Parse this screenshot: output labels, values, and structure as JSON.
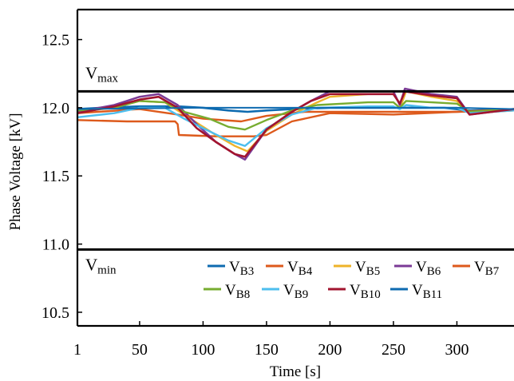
{
  "chart_data": {
    "type": "line",
    "xlabel": "Time [s]",
    "ylabel": "Phase Voltage [kV]",
    "xlim": [
      1,
      345
    ],
    "ylim": [
      10.4,
      12.72
    ],
    "x_ticks": [
      {
        "value": 1,
        "label": "1"
      },
      {
        "value": 50,
        "label": "50"
      },
      {
        "value": 100,
        "label": "100"
      },
      {
        "value": 150,
        "label": "150"
      },
      {
        "value": 200,
        "label": "200"
      },
      {
        "value": 250,
        "label": "250"
      },
      {
        "value": 300,
        "label": "300"
      }
    ],
    "y_ticks": [
      {
        "value": 10.5,
        "label": "10.5"
      },
      {
        "value": 11.0,
        "label": "11.0"
      },
      {
        "value": 11.5,
        "label": "11.5"
      },
      {
        "value": 12.0,
        "label": "12.0"
      },
      {
        "value": 12.5,
        "label": "12.5"
      }
    ],
    "reference_lines": [
      {
        "id": "vmax",
        "value": 12.12,
        "main": "V",
        "sub": "max"
      },
      {
        "id": "vmin",
        "value": 10.96,
        "main": "V",
        "sub": "min"
      }
    ],
    "legend_placement": "bottom",
    "grid": false,
    "series": [
      {
        "id": "b3",
        "main": "V",
        "sub": "B3",
        "color": "#0e6bb0",
        "width": 2.6,
        "points": [
          [
            1,
            11.99
          ],
          [
            20,
            12.0
          ],
          [
            50,
            12.01
          ],
          [
            80,
            12.01
          ],
          [
            100,
            12.0
          ],
          [
            120,
            11.98
          ],
          [
            135,
            11.97
          ],
          [
            150,
            11.98
          ],
          [
            170,
            11.99
          ],
          [
            200,
            12.0
          ],
          [
            240,
            12.0
          ],
          [
            260,
            12.0
          ],
          [
            290,
            12.0
          ],
          [
            310,
            11.98
          ],
          [
            345,
            11.99
          ]
        ]
      },
      {
        "id": "b4",
        "main": "V",
        "sub": "B4",
        "color": "#dd5a1c",
        "width": 2.4,
        "points": [
          [
            1,
            11.91
          ],
          [
            40,
            11.9
          ],
          [
            78,
            11.9
          ],
          [
            80,
            11.88
          ],
          [
            81,
            11.8
          ],
          [
            110,
            11.79
          ],
          [
            140,
            11.79
          ],
          [
            150,
            11.8
          ],
          [
            170,
            11.9
          ],
          [
            200,
            11.96
          ],
          [
            250,
            11.95
          ],
          [
            300,
            11.97
          ],
          [
            345,
            11.98
          ]
        ]
      },
      {
        "id": "b5",
        "main": "V",
        "sub": "B5",
        "color": "#eeb32a",
        "width": 2.4,
        "points": [
          [
            1,
            11.97
          ],
          [
            30,
            12.0
          ],
          [
            50,
            12.05
          ],
          [
            70,
            12.04
          ],
          [
            85,
            11.95
          ],
          [
            110,
            11.8
          ],
          [
            125,
            11.72
          ],
          [
            135,
            11.68
          ],
          [
            150,
            11.83
          ],
          [
            170,
            11.95
          ],
          [
            190,
            12.04
          ],
          [
            200,
            12.08
          ],
          [
            230,
            12.1
          ],
          [
            250,
            12.1
          ],
          [
            256,
            12.02
          ],
          [
            260,
            12.12
          ],
          [
            280,
            12.08
          ],
          [
            300,
            12.05
          ],
          [
            310,
            11.96
          ],
          [
            345,
            11.98
          ]
        ]
      },
      {
        "id": "b6",
        "main": "V",
        "sub": "B6",
        "color": "#7b3a96",
        "width": 2.5,
        "points": [
          [
            1,
            11.97
          ],
          [
            30,
            12.02
          ],
          [
            50,
            12.08
          ],
          [
            65,
            12.1
          ],
          [
            80,
            12.02
          ],
          [
            95,
            11.88
          ],
          [
            110,
            11.75
          ],
          [
            125,
            11.66
          ],
          [
            133,
            11.62
          ],
          [
            150,
            11.84
          ],
          [
            170,
            11.97
          ],
          [
            185,
            12.05
          ],
          [
            200,
            12.12
          ],
          [
            230,
            12.12
          ],
          [
            250,
            12.12
          ],
          [
            255,
            12.02
          ],
          [
            259,
            12.14
          ],
          [
            280,
            12.1
          ],
          [
            300,
            12.08
          ],
          [
            310,
            11.95
          ],
          [
            345,
            11.99
          ]
        ]
      },
      {
        "id": "b7",
        "main": "V",
        "sub": "B7",
        "color": "#dd5a1c",
        "width": 2.4,
        "points": [
          [
            1,
            11.96
          ],
          [
            50,
            11.99
          ],
          [
            80,
            11.95
          ],
          [
            100,
            11.92
          ],
          [
            130,
            11.9
          ],
          [
            150,
            11.94
          ],
          [
            180,
            11.97
          ],
          [
            220,
            11.97
          ],
          [
            260,
            11.97
          ],
          [
            300,
            11.97
          ],
          [
            345,
            11.99
          ]
        ]
      },
      {
        "id": "b8",
        "main": "V",
        "sub": "B8",
        "color": "#77ac30",
        "width": 2.4,
        "points": [
          [
            1,
            11.98
          ],
          [
            30,
            12.0
          ],
          [
            50,
            12.05
          ],
          [
            70,
            12.04
          ],
          [
            85,
            11.97
          ],
          [
            105,
            11.92
          ],
          [
            120,
            11.86
          ],
          [
            133,
            11.84
          ],
          [
            150,
            11.91
          ],
          [
            170,
            11.98
          ],
          [
            190,
            12.02
          ],
          [
            230,
            12.04
          ],
          [
            250,
            12.04
          ],
          [
            255,
            12.0
          ],
          [
            260,
            12.05
          ],
          [
            280,
            12.04
          ],
          [
            300,
            12.03
          ],
          [
            310,
            11.97
          ],
          [
            345,
            11.99
          ]
        ]
      },
      {
        "id": "b9",
        "main": "V",
        "sub": "B9",
        "color": "#4dbeee",
        "width": 2.4,
        "points": [
          [
            1,
            11.93
          ],
          [
            30,
            11.96
          ],
          [
            50,
            12.0
          ],
          [
            70,
            12.0
          ],
          [
            85,
            11.92
          ],
          [
            100,
            11.85
          ],
          [
            120,
            11.76
          ],
          [
            133,
            11.72
          ],
          [
            150,
            11.85
          ],
          [
            170,
            11.95
          ],
          [
            190,
            12.0
          ],
          [
            230,
            12.01
          ],
          [
            250,
            12.01
          ],
          [
            255,
            11.99
          ],
          [
            260,
            12.02
          ],
          [
            280,
            12.0
          ],
          [
            300,
            12.0
          ],
          [
            310,
            11.96
          ],
          [
            345,
            11.98
          ]
        ]
      },
      {
        "id": "b10",
        "main": "V",
        "sub": "B10",
        "color": "#a2142f",
        "width": 2.6,
        "points": [
          [
            1,
            11.96
          ],
          [
            30,
            12.01
          ],
          [
            50,
            12.06
          ],
          [
            65,
            12.08
          ],
          [
            80,
            12.0
          ],
          [
            95,
            11.85
          ],
          [
            110,
            11.75
          ],
          [
            125,
            11.66
          ],
          [
            133,
            11.64
          ],
          [
            150,
            11.84
          ],
          [
            170,
            11.97
          ],
          [
            185,
            12.05
          ],
          [
            200,
            12.1
          ],
          [
            230,
            12.1
          ],
          [
            250,
            12.1
          ],
          [
            255,
            12.03
          ],
          [
            259,
            12.12
          ],
          [
            280,
            12.09
          ],
          [
            300,
            12.07
          ],
          [
            310,
            11.95
          ],
          [
            345,
            11.99
          ]
        ]
      },
      {
        "id": "b11",
        "main": "V",
        "sub": "B11",
        "color": "#0e6bb0",
        "width": 2.0,
        "points": [
          [
            1,
            11.99
          ],
          [
            100,
            12.0
          ],
          [
            200,
            12.0
          ],
          [
            300,
            12.0
          ],
          [
            345,
            11.99
          ]
        ]
      }
    ]
  }
}
